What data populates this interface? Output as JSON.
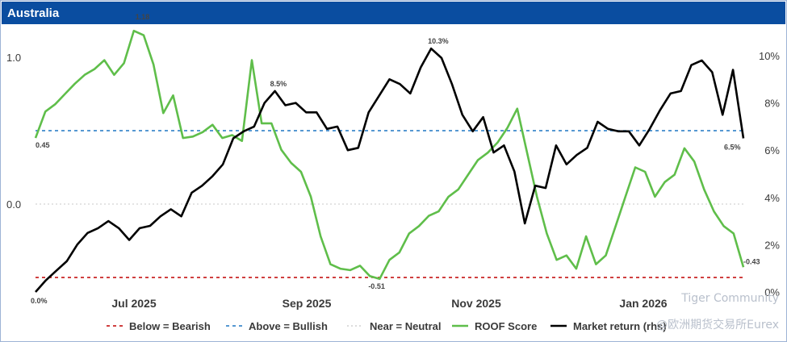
{
  "title": "Australia",
  "watermark": {
    "line1": "Tiger Community",
    "line2": "@欧洲期货交易所Eurex"
  },
  "chart_data": {
    "type": "line",
    "title": "Australia",
    "x_tick_labels": [
      "Jul 2025",
      "Sep 2025",
      "Nov 2025",
      "Jan 2026"
    ],
    "y_left_ticks": [
      "1.0",
      "0.0"
    ],
    "y_right_ticks": [
      "0%",
      "2%",
      "4%",
      "6%",
      "8%",
      "10%"
    ],
    "y_left_range": [
      -0.64,
      1.18
    ],
    "y_right_range": [
      0,
      10
    ],
    "thresholds": [
      {
        "name": "Below = Bearish",
        "value": -0.5,
        "color": "#c00000",
        "style": "dashed"
      },
      {
        "name": "Above = Bullish",
        "value": 0.5,
        "color": "#1f77c4",
        "style": "dashed"
      },
      {
        "name": "Near = Neutral",
        "value": 0.0,
        "color": "#c8c8c8",
        "style": "dotted"
      }
    ],
    "series": [
      {
        "name": "ROOF Score",
        "axis": "left",
        "color": "#5fbe4a",
        "values": [
          0.45,
          0.63,
          0.68,
          0.75,
          0.82,
          0.88,
          0.92,
          0.98,
          0.88,
          0.96,
          1.18,
          1.15,
          0.95,
          0.62,
          0.74,
          0.45,
          0.46,
          0.49,
          0.54,
          0.45,
          0.47,
          0.43,
          0.98,
          0.55,
          0.55,
          0.37,
          0.28,
          0.22,
          0.05,
          -0.22,
          -0.41,
          -0.44,
          -0.45,
          -0.42,
          -0.49,
          -0.51,
          -0.38,
          -0.33,
          -0.2,
          -0.15,
          -0.08,
          -0.05,
          0.05,
          0.1,
          0.2,
          0.3,
          0.35,
          0.42,
          0.52,
          0.65,
          0.35,
          0.05,
          -0.2,
          -0.38,
          -0.35,
          -0.44,
          -0.22,
          -0.41,
          -0.35,
          -0.15,
          0.05,
          0.25,
          0.22,
          0.05,
          0.15,
          0.2,
          0.38,
          0.29,
          0.1,
          -0.05,
          -0.15,
          -0.2,
          -0.43
        ]
      },
      {
        "name": "Market return (rhs)",
        "axis": "right",
        "color": "#000000",
        "values": [
          0.0,
          0.5,
          0.9,
          1.3,
          2.0,
          2.5,
          2.7,
          3.0,
          2.7,
          2.2,
          2.7,
          2.8,
          3.2,
          3.5,
          3.2,
          4.2,
          4.5,
          4.9,
          5.4,
          6.5,
          6.8,
          7.0,
          8.0,
          8.5,
          7.9,
          8.0,
          7.6,
          7.6,
          6.9,
          7.0,
          6.0,
          6.1,
          7.6,
          8.3,
          9.0,
          8.8,
          8.4,
          9.5,
          10.3,
          9.9,
          8.8,
          7.5,
          6.8,
          7.4,
          5.9,
          6.2,
          5.1,
          2.9,
          4.5,
          4.4,
          6.2,
          5.4,
          5.8,
          6.1,
          7.2,
          6.9,
          6.8,
          6.8,
          6.2,
          6.9,
          7.7,
          8.4,
          8.5,
          9.6,
          9.8,
          9.3,
          7.5,
          9.4,
          6.5
        ]
      }
    ],
    "point_labels": [
      {
        "text": "1.18",
        "series": "ROOF Score"
      },
      {
        "text": "0.45",
        "series": "ROOF Score"
      },
      {
        "text": "-0.51",
        "series": "ROOF Score"
      },
      {
        "text": "-0.43",
        "series": "ROOF Score"
      },
      {
        "text": "8.5%",
        "series": "Market return (rhs)"
      },
      {
        "text": "10.3%",
        "series": "Market return (rhs)"
      },
      {
        "text": "6.5%",
        "series": "Market return (rhs)"
      },
      {
        "text": "0.0%",
        "series": "Market return (rhs)"
      }
    ],
    "legend": {
      "placement": "bottom",
      "items": [
        "Below = Bearish",
        "Above = Bullish",
        "Near = Neutral",
        "ROOF Score",
        "Market return (rhs)"
      ]
    },
    "grid": false
  }
}
